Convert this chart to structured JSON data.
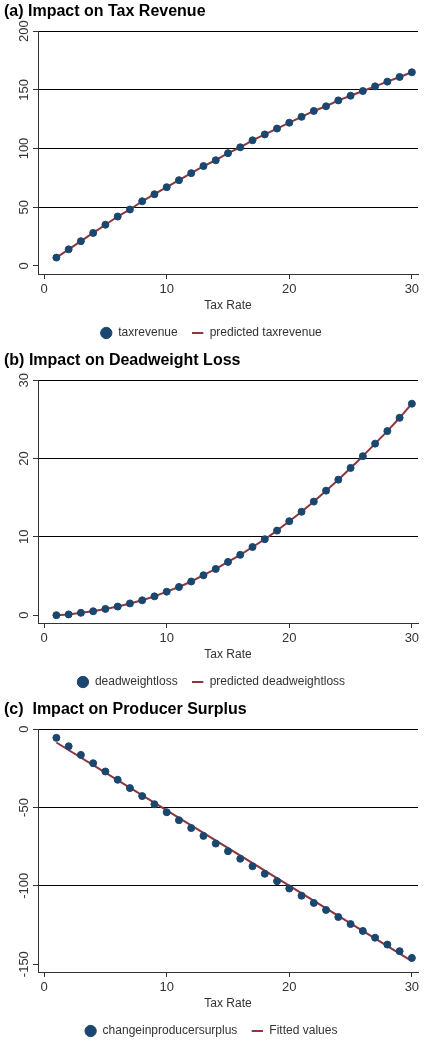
{
  "chart_data": [
    {
      "type": "scatter",
      "title": "(a) Impact on Tax Revenue",
      "xlabel": "Tax Rate",
      "x": [
        1,
        2,
        3,
        4,
        5,
        6,
        7,
        8,
        9,
        10,
        11,
        12,
        13,
        14,
        15,
        16,
        17,
        18,
        19,
        20,
        21,
        22,
        23,
        24,
        25,
        26,
        27,
        28,
        29,
        30
      ],
      "xlim": [
        -0.5,
        30.5
      ],
      "xticks": [
        0,
        10,
        20,
        30
      ],
      "ylim": [
        -7,
        200
      ],
      "yticks": [
        0,
        50,
        100,
        150,
        200
      ],
      "grid": "y",
      "legend": "bottom",
      "series": [
        {
          "name": "taxrevenue",
          "marker": "circle",
          "color": "#1a476f",
          "values": [
            7,
            14,
            21,
            28,
            35,
            42,
            48,
            55,
            61,
            67,
            73,
            79,
            85,
            90,
            96,
            101,
            107,
            112,
            117,
            122,
            127,
            132,
            136,
            141,
            145,
            149,
            153,
            157,
            161,
            165
          ]
        },
        {
          "name": "predicted taxrevenue",
          "type": "line",
          "color": "#90353b",
          "values": [
            7,
            14,
            21,
            28,
            35,
            42,
            48,
            55,
            61,
            67,
            73,
            79,
            85,
            90,
            96,
            101,
            107,
            112,
            117,
            122,
            127,
            132,
            136,
            141,
            145,
            149,
            153,
            157,
            161,
            165
          ]
        }
      ]
    },
    {
      "type": "scatter",
      "title": "(b) Impact on Deadweight Loss",
      "xlabel": "Tax Rate",
      "x": [
        1,
        2,
        3,
        4,
        5,
        6,
        7,
        8,
        9,
        10,
        11,
        12,
        13,
        14,
        15,
        16,
        17,
        18,
        19,
        20,
        21,
        22,
        23,
        24,
        25,
        26,
        27,
        28,
        29,
        30
      ],
      "xlim": [
        -0.5,
        30.5
      ],
      "xticks": [
        0,
        10,
        20,
        30
      ],
      "ylim": [
        -1,
        30
      ],
      "yticks": [
        0,
        10,
        20,
        30
      ],
      "grid": "y",
      "legend": "bottom",
      "series": [
        {
          "name": "deadweightloss",
          "marker": "circle",
          "color": "#1a476f",
          "values": [
            0,
            0.1,
            0.3,
            0.5,
            0.8,
            1.1,
            1.5,
            1.9,
            2.4,
            3,
            3.6,
            4.3,
            5.1,
            5.9,
            6.8,
            7.7,
            8.7,
            9.7,
            10.8,
            12,
            13.2,
            14.5,
            15.9,
            17.3,
            18.8,
            20.3,
            21.9,
            23.5,
            25.2,
            27
          ]
        },
        {
          "name": "predicted deadweightloss",
          "type": "line",
          "color": "#90353b",
          "values": [
            0,
            0.1,
            0.3,
            0.5,
            0.8,
            1.1,
            1.5,
            1.9,
            2.4,
            3,
            3.6,
            4.3,
            5.1,
            5.9,
            6.8,
            7.7,
            8.7,
            9.7,
            10.8,
            12,
            13.2,
            14.5,
            15.9,
            17.3,
            18.8,
            20.3,
            21.9,
            23.5,
            25.2,
            27
          ]
        }
      ]
    },
    {
      "type": "scatter",
      "title": "(c)  Impact on Producer Surplus",
      "xlabel": "Tax Rate",
      "x": [
        1,
        2,
        3,
        4,
        5,
        6,
        7,
        8,
        9,
        10,
        11,
        12,
        13,
        14,
        15,
        16,
        17,
        18,
        19,
        20,
        21,
        22,
        23,
        24,
        25,
        26,
        27,
        28,
        29,
        30
      ],
      "xlim": [
        -0.5,
        30.5
      ],
      "xticks": [
        0,
        10,
        20,
        30
      ],
      "ylim": [
        -155,
        0
      ],
      "yticks": [
        -150,
        -100,
        -50,
        0
      ],
      "grid": "y",
      "legend": "bottom",
      "series": [
        {
          "name": "changeinproducersurplus",
          "marker": "circle",
          "color": "#1a476f",
          "values": [
            -5.5,
            -10.9,
            -16.4,
            -21.7,
            -27,
            -32.3,
            -37.6,
            -42.7,
            -47.9,
            -53,
            -58.1,
            -63.1,
            -68.1,
            -73,
            -77.9,
            -82.7,
            -87.5,
            -92.3,
            -97,
            -101.7,
            -106.3,
            -110.9,
            -115.4,
            -119.9,
            -124.4,
            -128.8,
            -133.1,
            -137.5,
            -141.7,
            -146
          ]
        },
        {
          "name": "Fitted values",
          "type": "line",
          "color": "#90353b",
          "x": [
            1,
            30
          ],
          "values": [
            -8.5,
            -148
          ]
        }
      ]
    }
  ]
}
